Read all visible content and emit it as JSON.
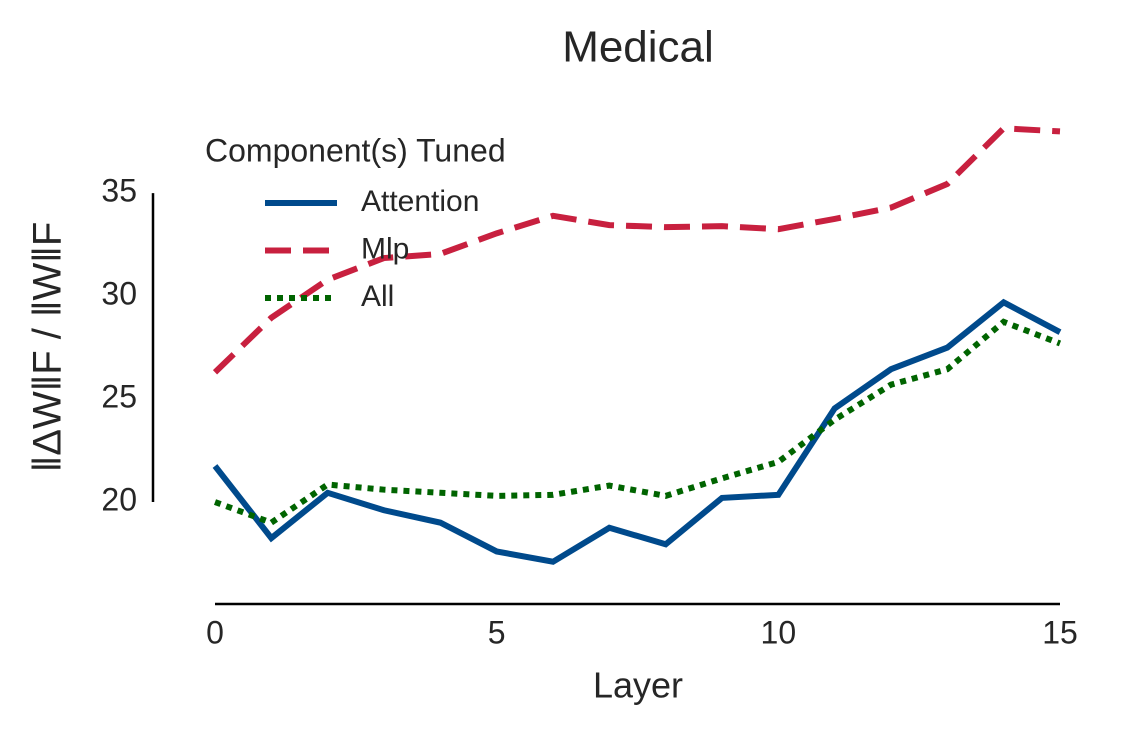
{
  "chart_data": {
    "type": "line",
    "title": "Medical",
    "xlabel": "Layer",
    "ylabel": "‖ΔW‖F / ‖W‖F",
    "legend_title": "Component(s) Tuned",
    "legend": "upper left",
    "x": [
      0,
      1,
      2,
      3,
      4,
      5,
      6,
      7,
      8,
      9,
      10,
      11,
      12,
      13,
      14,
      15
    ],
    "series": [
      {
        "name": "Attention",
        "color": "#004a8c",
        "dash": "solid",
        "values": [
          21.75,
          18.25,
          20.45,
          19.6,
          19.0,
          17.6,
          17.1,
          18.75,
          17.95,
          20.2,
          20.35,
          24.55,
          26.45,
          27.5,
          29.7,
          28.25
        ]
      },
      {
        "name": "Mlp",
        "color": "#c8203f",
        "dash": "dashed",
        "values": [
          26.3,
          28.95,
          30.8,
          31.85,
          32.05,
          33.05,
          33.9,
          33.45,
          33.35,
          33.4,
          33.25,
          33.75,
          34.3,
          35.45,
          38.15,
          38.0
        ]
      },
      {
        "name": "All",
        "color": "#006400",
        "dash": "dotted",
        "values": [
          20.0,
          19.0,
          20.85,
          20.6,
          20.45,
          20.3,
          20.35,
          20.8,
          20.3,
          21.15,
          21.95,
          24.0,
          25.7,
          26.45,
          28.75,
          27.7
        ]
      }
    ],
    "xlim": [
      0,
      15
    ],
    "xticks": [
      0,
      5,
      10,
      15
    ],
    "ylim": [
      15,
      38.5
    ],
    "yticks": [
      20,
      25,
      30,
      35
    ],
    "grid": false
  }
}
